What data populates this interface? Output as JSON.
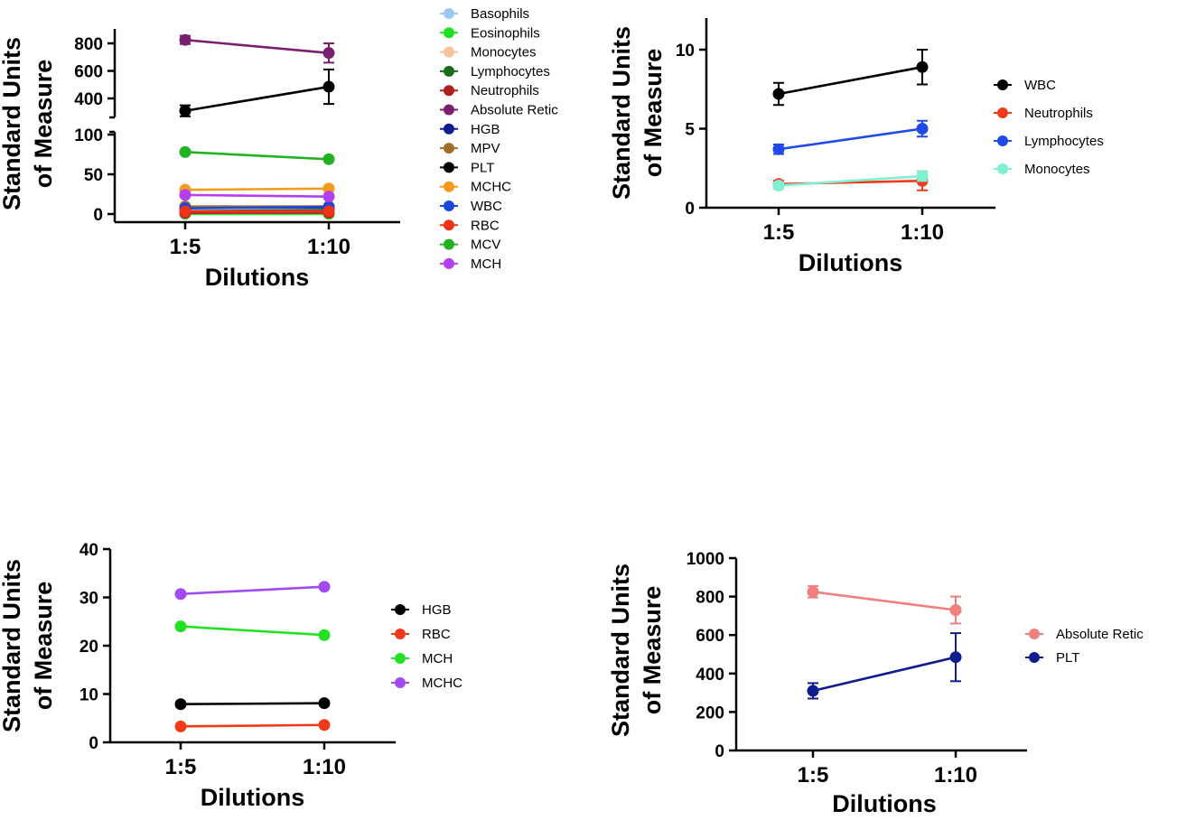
{
  "chart_data": [
    {
      "type": "line",
      "axis_break": true,
      "categories": [
        "1:5",
        "1:10"
      ],
      "xlabel": "Dilutions",
      "ylabel_lines": [
        "Standard Units",
        "of Measure"
      ],
      "yticks_lower": [
        "0",
        "50",
        "100"
      ],
      "yticks_upper": [
        "400",
        "600",
        "800"
      ],
      "legend_position": "right",
      "series": [
        {
          "name": "Basophils",
          "color": "#9dc8f0",
          "values": [
            0.1,
            0.1
          ],
          "err": [
            0,
            0
          ]
        },
        {
          "name": "Eosinophils",
          "color": "#20e020",
          "values": [
            0.2,
            0.2
          ],
          "err": [
            0,
            0
          ]
        },
        {
          "name": "Monocytes",
          "color": "#f5c49b",
          "values": [
            1.4,
            2.0
          ],
          "err": [
            0.2,
            0.3
          ]
        },
        {
          "name": "Lymphocytes",
          "color": "#1a6b1a",
          "values": [
            3.7,
            5.0
          ],
          "err": [
            0.3,
            0.5
          ]
        },
        {
          "name": "Neutrophils",
          "color": "#b21f1f",
          "values": [
            1.5,
            1.7
          ],
          "err": [
            0.2,
            0.5
          ]
        },
        {
          "name": "Absolute Retic",
          "color": "#7a1f6e",
          "values": [
            825,
            730
          ],
          "err": [
            30,
            70
          ]
        },
        {
          "name": "HGB",
          "color": "#0f1e8c",
          "values": [
            8.0,
            8.1
          ],
          "err": [
            0.3,
            0.3
          ]
        },
        {
          "name": "MPV",
          "color": "#a0702a",
          "values": [
            9.5,
            9.6
          ],
          "err": [
            0.2,
            0.2
          ]
        },
        {
          "name": "PLT",
          "color": "#000000",
          "values": [
            310,
            485
          ],
          "err": [
            40,
            125
          ]
        },
        {
          "name": "MCHC",
          "color": "#f59a1a",
          "values": [
            30.5,
            32.0
          ],
          "err": [
            0.5,
            0.6
          ]
        },
        {
          "name": "WBC",
          "color": "#1a47e0",
          "values": [
            7.2,
            8.9
          ],
          "err": [
            0.7,
            1.1
          ]
        },
        {
          "name": "RBC",
          "color": "#f03216",
          "values": [
            3.3,
            3.6
          ],
          "err": [
            0.2,
            0.2
          ]
        },
        {
          "name": "MCV",
          "color": "#23b023",
          "values": [
            78,
            69
          ],
          "err": [
            1.5,
            1.5
          ]
        },
        {
          "name": "MCH",
          "color": "#b43ff0",
          "values": [
            24,
            22
          ],
          "err": [
            0.4,
            0.4
          ]
        }
      ]
    },
    {
      "type": "line",
      "categories": [
        "1:5",
        "1:10"
      ],
      "xlabel": "Dilutions",
      "ylabel_lines": [
        "Standard Units",
        "of Measure"
      ],
      "ylim": [
        0,
        12
      ],
      "yticks": [
        0,
        5,
        10
      ],
      "legend_position": "right",
      "series": [
        {
          "name": "WBC",
          "color": "#000000",
          "values": [
            7.2,
            8.9
          ],
          "err": [
            0.7,
            1.1
          ]
        },
        {
          "name": "Neutrophils",
          "color": "#f03a1a",
          "values": [
            1.5,
            1.7
          ],
          "err": [
            0.2,
            0.6
          ]
        },
        {
          "name": "Lymphocytes",
          "color": "#1f4ae8",
          "values": [
            3.7,
            5.0
          ],
          "err": [
            0.3,
            0.5
          ]
        },
        {
          "name": "Monocytes",
          "color": "#7ff0d0",
          "values": [
            1.4,
            2.0
          ],
          "err": [
            0.2,
            0.3
          ]
        }
      ]
    },
    {
      "type": "line",
      "categories": [
        "1:5",
        "1:10"
      ],
      "xlabel": "Dilutions",
      "ylabel_lines": [
        "Standard Units",
        "of Measure"
      ],
      "ylim": [
        0,
        40
      ],
      "yticks": [
        0,
        10,
        20,
        30,
        40
      ],
      "legend_position": "right",
      "series": [
        {
          "name": "HGB",
          "color": "#000000",
          "values": [
            7.9,
            8.1
          ],
          "err": [
            0.3,
            0.4
          ]
        },
        {
          "name": "RBC",
          "color": "#f03a1a",
          "values": [
            3.3,
            3.6
          ],
          "err": [
            0.2,
            0.2
          ]
        },
        {
          "name": "MCH",
          "color": "#22e022",
          "values": [
            24.0,
            22.2
          ],
          "err": [
            0.3,
            0.3
          ]
        },
        {
          "name": "MCHC",
          "color": "#a24af0",
          "values": [
            30.7,
            32.2
          ],
          "err": [
            0.4,
            0.4
          ]
        }
      ]
    },
    {
      "type": "line",
      "categories": [
        "1:5",
        "1:10"
      ],
      "xlabel": "Dilutions",
      "ylabel_lines": [
        "Standard Units",
        "of Measure"
      ],
      "ylim": [
        0,
        1000
      ],
      "yticks": [
        0,
        200,
        400,
        600,
        800,
        1000
      ],
      "legend_position": "right",
      "series": [
        {
          "name": "Absolute Retic",
          "color": "#f08080",
          "values": [
            825,
            730
          ],
          "err": [
            30,
            70
          ]
        },
        {
          "name": "PLT",
          "color": "#0f1e8c",
          "values": [
            310,
            485
          ],
          "err": [
            40,
            125
          ]
        }
      ]
    }
  ]
}
